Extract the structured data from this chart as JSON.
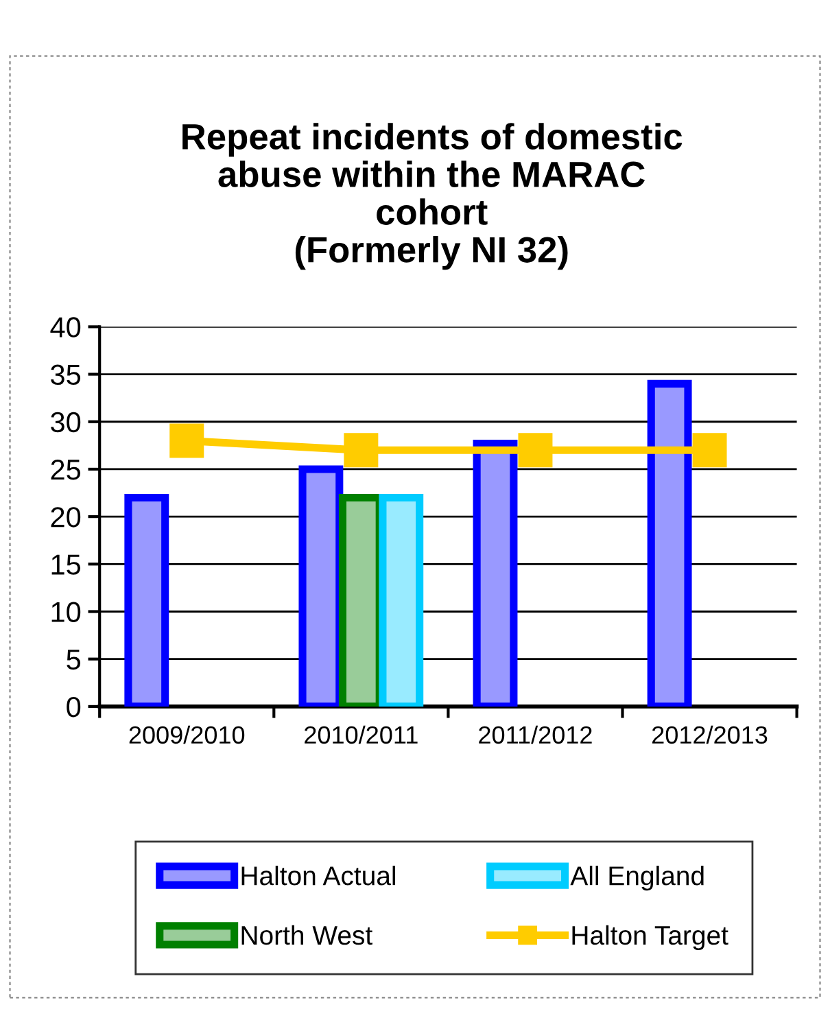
{
  "chart_data": {
    "type": "bar",
    "title": "Repeat incidents of domestic\nabuse within the MARAC\ncohort\n(Formerly NI 32)",
    "categories": [
      "2009/2010",
      "2010/2011",
      "2011/2012",
      "2012/2013"
    ],
    "series": [
      {
        "name": "Halton Actual",
        "color": "#0000ff",
        "values": [
          22,
          25,
          27.7,
          34
        ]
      },
      {
        "name": "North West",
        "color": "#008000",
        "values": [
          null,
          22,
          null,
          null
        ]
      },
      {
        "name": "All England",
        "color": "#00ccff",
        "values": [
          null,
          22,
          null,
          null
        ]
      },
      {
        "name": "Halton Target",
        "type": "line",
        "color": "#ffcc00",
        "marker": "square",
        "values": [
          28,
          27,
          27,
          27
        ]
      }
    ],
    "ylim": [
      0,
      40
    ],
    "yticks": [
      0,
      5,
      10,
      15,
      20,
      25,
      30,
      35,
      40
    ],
    "grid": "y",
    "legend": "bottom"
  }
}
